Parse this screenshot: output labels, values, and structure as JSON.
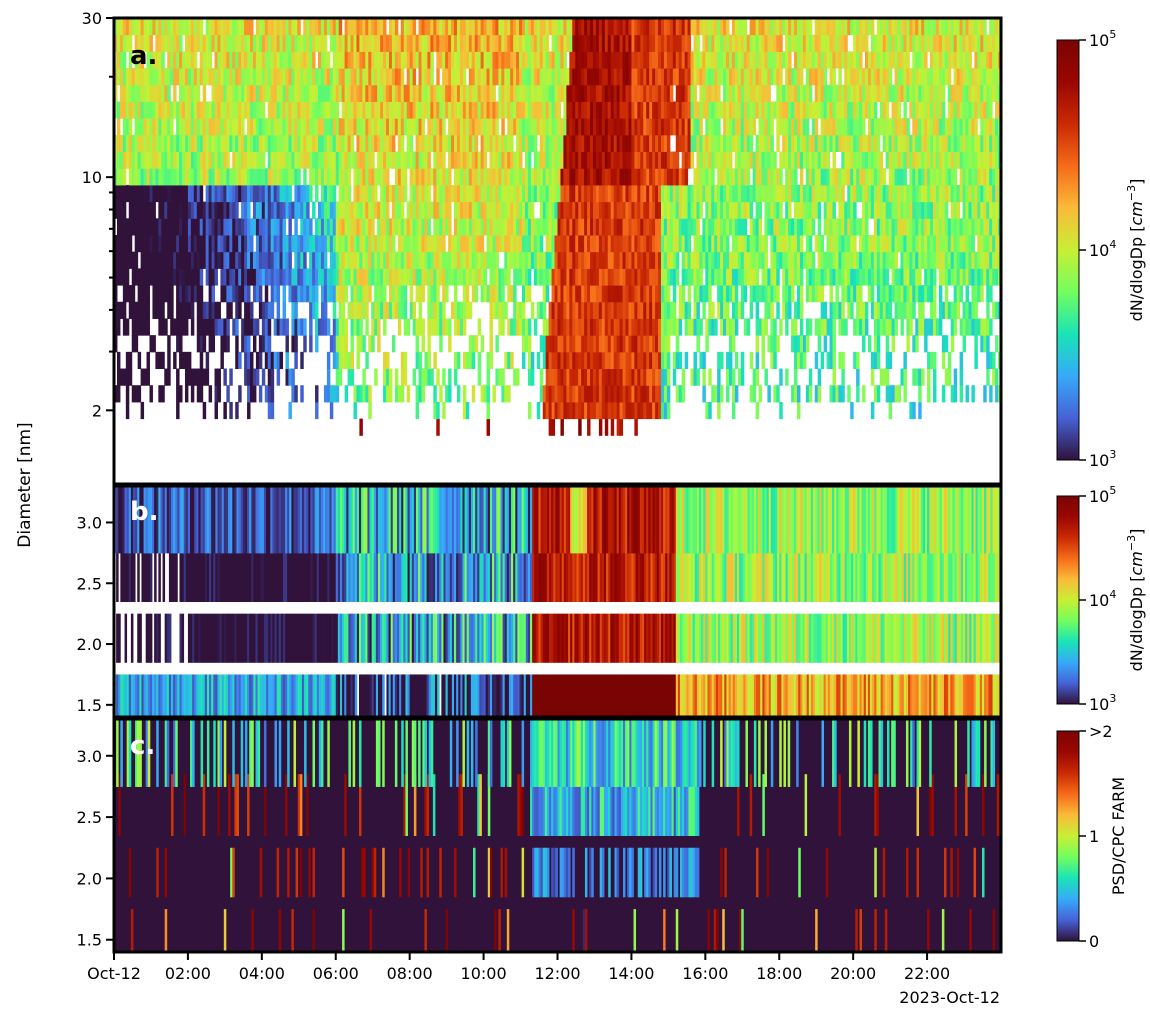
{
  "figure": {
    "ylabel": "Diameter [nm]",
    "xlabel_date": "2023-Oct-12",
    "x_ticks": [
      "Oct-12",
      "02:00",
      "04:00",
      "06:00",
      "08:00",
      "10:00",
      "12:00",
      "14:00",
      "16:00",
      "18:00",
      "20:00",
      "22:00"
    ]
  },
  "chart_data": [
    {
      "type": "heatmap",
      "panel_label": "a.",
      "x_axis": {
        "unit": "hours",
        "range": [
          0,
          24
        ],
        "tick_values": [
          0,
          2,
          4,
          6,
          8,
          10,
          12,
          14,
          16,
          18,
          20,
          22
        ]
      },
      "y_axis": {
        "scale": "log",
        "range": [
          1.5,
          30
        ],
        "tick_labels": [
          "30",
          "10",
          "2"
        ],
        "tick_values": [
          30,
          10,
          2
        ]
      },
      "colorbar": {
        "label_main": "dN/dlogDp [",
        "label_unit": "cm",
        "label_exp": "−3",
        "label_end": "]",
        "scale": "log",
        "range": [
          1000,
          100000
        ],
        "tick_base": [
          "10",
          "10",
          "10"
        ],
        "tick_exp": [
          "5",
          "4",
          "3"
        ],
        "tick_values": [
          100000,
          10000,
          1000
        ]
      },
      "event": {
        "onset_hour": 11.3,
        "end_hour": 15.6,
        "peak_value": 100000
      },
      "background_value": 6000
    },
    {
      "type": "heatmap",
      "panel_label": "b.",
      "x_axis": {
        "unit": "hours",
        "range": [
          0,
          24
        ]
      },
      "y_axis": {
        "scale": "linear",
        "range": [
          1.4,
          3.3
        ],
        "tick_labels": [
          "3.0",
          "2.5",
          "2.0",
          "1.5"
        ],
        "tick_values": [
          3.0,
          2.5,
          2.0,
          1.5
        ]
      },
      "size_bins": [
        1.5,
        2.0,
        2.5,
        3.0
      ],
      "colorbar": {
        "label_main": "dN/dlogDp [",
        "label_unit": "cm",
        "label_exp": "−3",
        "label_end": "]",
        "scale": "log",
        "range": [
          1000,
          100000
        ],
        "tick_base": [
          "10",
          "10",
          "10"
        ],
        "tick_exp": [
          "5",
          "4",
          "3"
        ],
        "tick_values": [
          100000,
          10000,
          1000
        ]
      },
      "event": {
        "onset_hour": 11.3,
        "end_hour": 15.2,
        "peak_value": 100000
      }
    },
    {
      "type": "heatmap",
      "panel_label": "c.",
      "x_axis": {
        "unit": "hours",
        "range": [
          0,
          24
        ]
      },
      "y_axis": {
        "scale": "linear",
        "range": [
          1.4,
          3.3
        ],
        "tick_labels": [
          "3.0",
          "2.5",
          "2.0",
          "1.5"
        ],
        "tick_values": [
          3.0,
          2.5,
          2.0,
          1.5
        ]
      },
      "size_bins": [
        1.5,
        2.0,
        2.5,
        3.0
      ],
      "colorbar": {
        "label": "PSD/CPC FARM",
        "scale": "linear",
        "range": [
          0,
          2
        ],
        "tick_labels": [
          ">2",
          "1",
          "0"
        ],
        "tick_values": [
          2,
          1,
          0
        ]
      }
    }
  ]
}
